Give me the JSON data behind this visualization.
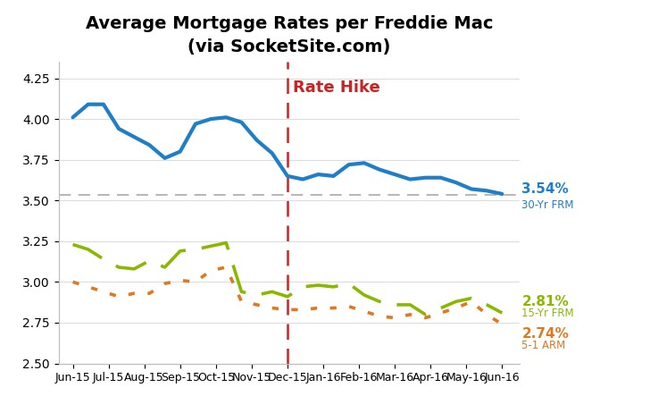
{
  "title": "Average Mortgage Rates per Freddie Mac",
  "subtitle": "(via SocketSite.com)",
  "title_fontsize": 14,
  "subtitle_fontsize": 11,
  "ylim": [
    2.5,
    4.35
  ],
  "yticks": [
    2.5,
    2.75,
    3.0,
    3.25,
    3.5,
    3.75,
    4.0,
    4.25
  ],
  "hline_y": 3.535,
  "hline_color": "#aaaaaa",
  "vline_color": "#cc2222",
  "vline_label": "Rate Hike",
  "background_color": "#ffffff",
  "plot_bg_color": "#ffffff",
  "x_labels": [
    "Jun-15",
    "Jul-15",
    "Aug-15",
    "Sep-15",
    "Oct-15",
    "Nov-15",
    "Dec-15",
    "Jan-16",
    "Feb-16",
    "Mar-16",
    "Apr-16",
    "May-16",
    "Jun-16"
  ],
  "frm30_color": "#1e7ec8",
  "frm15_color": "#8ab800",
  "arm51_color": "#e07820",
  "frm30_label_value": "3.54%",
  "frm30_label_name": "30-Yr FRM",
  "frm15_label_value": "2.81%",
  "frm15_label_name": "15-Yr FRM",
  "arm51_label_value": "2.74%",
  "arm51_label_name": "5-1 ARM",
  "frm30": [
    4.01,
    4.09,
    4.09,
    3.94,
    3.89,
    3.84,
    3.76,
    3.8,
    3.97,
    4.0,
    4.01,
    3.98,
    3.87,
    3.79,
    3.65,
    3.63,
    3.66,
    3.65,
    3.72,
    3.73,
    3.69,
    3.66,
    3.63,
    3.64,
    3.64,
    3.61,
    3.57,
    3.56,
    3.54
  ],
  "frm15": [
    3.23,
    3.2,
    3.14,
    3.09,
    3.08,
    3.13,
    3.09,
    3.19,
    3.2,
    3.22,
    3.24,
    2.94,
    2.92,
    2.94,
    2.91,
    2.97,
    2.98,
    2.97,
    2.99,
    2.92,
    2.88,
    2.86,
    2.86,
    2.8,
    2.84,
    2.88,
    2.9,
    2.86,
    2.81
  ],
  "arm51": [
    3.0,
    2.97,
    2.94,
    2.91,
    2.93,
    2.93,
    2.99,
    3.01,
    3.0,
    3.07,
    3.09,
    2.88,
    2.86,
    2.84,
    2.83,
    2.83,
    2.84,
    2.84,
    2.85,
    2.82,
    2.79,
    2.78,
    2.8,
    2.78,
    2.81,
    2.84,
    2.88,
    2.8,
    2.74
  ]
}
